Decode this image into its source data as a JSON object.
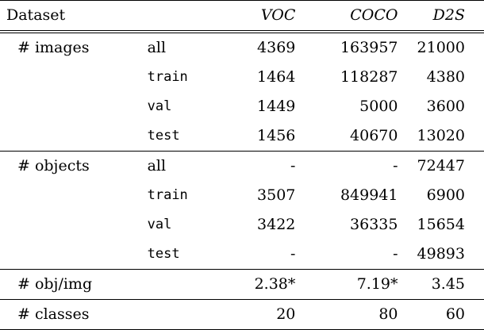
{
  "header": {
    "dataset": "Dataset",
    "voc": "VOC",
    "coco": "COCO",
    "d2s": "D2S"
  },
  "images": {
    "label": "# images",
    "rows": [
      {
        "split": "all",
        "voc": "4369",
        "coco": "163957",
        "d2s": "21000"
      },
      {
        "split": "train",
        "voc": "1464",
        "coco": "118287",
        "d2s": "4380"
      },
      {
        "split": "val",
        "voc": "1449",
        "coco": "5000",
        "d2s": "3600"
      },
      {
        "split": "test",
        "voc": "1456",
        "coco": "40670",
        "d2s": "13020"
      }
    ]
  },
  "objects": {
    "label": "# objects",
    "rows": [
      {
        "split": "all",
        "voc": "-",
        "coco": "-",
        "d2s": "72447"
      },
      {
        "split": "train",
        "voc": "3507",
        "coco": "849941",
        "d2s": "6900"
      },
      {
        "split": "val",
        "voc": "3422",
        "coco": "36335",
        "d2s": "15654"
      },
      {
        "split": "test",
        "voc": "-",
        "coco": "-",
        "d2s": "49893"
      }
    ]
  },
  "obj_per_img": {
    "label": "# obj/img",
    "voc": "2.38*",
    "coco": "7.19*",
    "d2s": "3.45"
  },
  "classes": {
    "label": "# classes",
    "voc": "20",
    "coco": "80",
    "d2s": "60"
  }
}
